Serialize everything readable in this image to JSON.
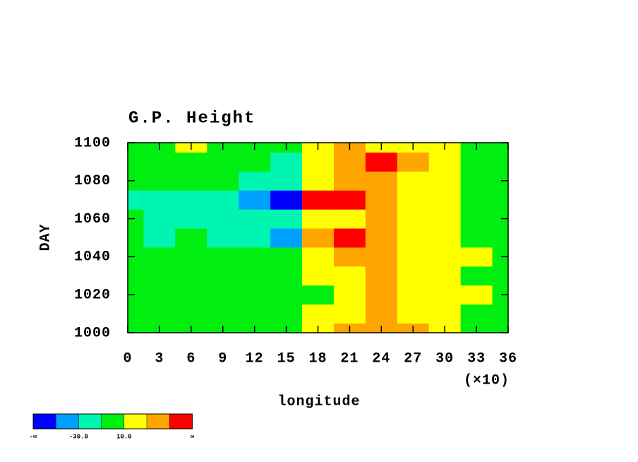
{
  "chart_data": {
    "type": "heatmap",
    "title": "G.P. Height",
    "x_label": "longitude",
    "y_label": "DAY",
    "x_multiplier": "(×10)",
    "x": [
      0,
      3,
      6,
      9,
      12,
      15,
      18,
      21,
      24,
      27,
      30,
      33,
      36
    ],
    "y": [
      1000,
      1010,
      1020,
      1030,
      1040,
      1050,
      1060,
      1070,
      1080,
      1090,
      1100
    ],
    "z": [
      [
        0,
        -5,
        0,
        5,
        0,
        0,
        15,
        30,
        45,
        35,
        20,
        5,
        0
      ],
      [
        5,
        0,
        -5,
        0,
        5,
        0,
        10,
        25,
        30,
        25,
        15,
        5,
        0
      ],
      [
        0,
        -5,
        0,
        0,
        -5,
        5,
        5,
        20,
        35,
        25,
        20,
        10,
        5
      ],
      [
        -5,
        0,
        5,
        0,
        0,
        -5,
        10,
        25,
        30,
        25,
        20,
        5,
        0
      ],
      [
        0,
        -10,
        -5,
        0,
        -5,
        -10,
        15,
        30,
        35,
        25,
        15,
        10,
        5
      ],
      [
        -5,
        -15,
        -10,
        -15,
        -20,
        -35,
        40,
        55,
        30,
        20,
        10,
        0,
        -5
      ],
      [
        -10,
        -15,
        -15,
        -20,
        -25,
        -30,
        15,
        25,
        30,
        25,
        15,
        5,
        -10
      ],
      [
        -20,
        -25,
        -20,
        -30,
        -40,
        -55,
        50,
        55,
        45,
        25,
        10,
        0,
        -5
      ],
      [
        5,
        0,
        -5,
        -10,
        -15,
        -20,
        20,
        30,
        30,
        20,
        10,
        0,
        -5
      ],
      [
        0,
        -5,
        -10,
        -5,
        -10,
        -15,
        25,
        45,
        50,
        35,
        15,
        5,
        0
      ],
      [
        5,
        5,
        10,
        5,
        0,
        -5,
        15,
        35,
        25,
        20,
        10,
        5,
        0
      ]
    ],
    "xlim": [
      0,
      36
    ],
    "xticks": [
      0,
      3,
      6,
      9,
      12,
      15,
      18,
      21,
      24,
      27,
      30,
      33,
      36
    ],
    "ylim": [
      1000,
      1100
    ],
    "yticks": [
      1000,
      1020,
      1040,
      1060,
      1080,
      1100
    ],
    "colorbar": {
      "colors": [
        "#0000ff",
        "#00a0ff",
        "#00f5b0",
        "#00ee10",
        "#ffff00",
        "#ffa500",
        "#ff0000"
      ],
      "levels": [
        -50,
        -30,
        -10,
        10,
        30,
        50
      ],
      "labels": [
        "-∞",
        null,
        "-30.0",
        null,
        "10.0",
        null,
        null,
        "∞"
      ]
    }
  }
}
